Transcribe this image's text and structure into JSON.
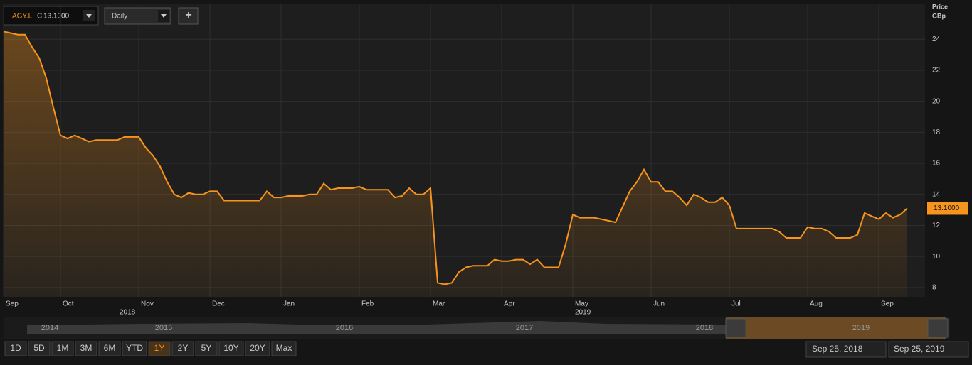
{
  "chart_data": {
    "type": "line",
    "axis_title": "Price",
    "axis_unit": "GBp",
    "categories": [
      "Sep",
      null,
      null,
      null,
      null,
      null,
      null,
      null,
      "Oct",
      null,
      null,
      null,
      null,
      null,
      null,
      null,
      null,
      null,
      null,
      "Nov",
      null,
      null,
      null,
      null,
      null,
      null,
      null,
      null,
      null,
      "Dec",
      null,
      null,
      null,
      null,
      null,
      null,
      null,
      null,
      null,
      "Jan",
      null,
      null,
      null,
      null,
      null,
      null,
      null,
      null,
      null,
      null,
      "Feb",
      null,
      null,
      null,
      null,
      null,
      null,
      null,
      null,
      null,
      "Mar",
      null,
      null,
      null,
      null,
      null,
      null,
      null,
      null,
      null,
      "Apr",
      null,
      null,
      null,
      null,
      null,
      null,
      null,
      null,
      null,
      "May",
      null,
      null,
      null,
      null,
      null,
      null,
      null,
      null,
      null,
      null,
      "Jun",
      null,
      null,
      null,
      null,
      null,
      null,
      null,
      null,
      null,
      null,
      "Jul",
      null,
      null,
      null,
      null,
      null,
      null,
      null,
      null,
      null,
      null,
      "Aug",
      null,
      null,
      null,
      null,
      null,
      null,
      null,
      null,
      null,
      "Sep",
      null,
      null,
      null,
      null
    ],
    "years": [
      "2018",
      "2019"
    ],
    "series": [
      {
        "name": "AGY.L",
        "color": "#f7941d",
        "values": [
          24.5,
          24.4,
          24.3,
          24.3,
          23.5,
          22.8,
          21.5,
          19.6,
          17.8,
          17.6,
          17.8,
          17.6,
          17.4,
          17.5,
          17.5,
          17.5,
          17.5,
          17.7,
          17.7,
          17.7,
          17.0,
          16.5,
          15.8,
          14.8,
          14.0,
          13.8,
          14.1,
          14.0,
          14.0,
          14.2,
          14.2,
          13.6,
          13.6,
          13.6,
          13.6,
          13.6,
          13.6,
          14.2,
          13.8,
          13.8,
          13.9,
          13.9,
          13.9,
          14.0,
          14.0,
          14.7,
          14.3,
          14.4,
          14.4,
          14.4,
          14.5,
          14.3,
          14.3,
          14.3,
          14.3,
          13.8,
          13.9,
          14.4,
          14.0,
          14.0,
          14.4,
          8.3,
          8.2,
          8.3,
          9.0,
          9.3,
          9.4,
          9.4,
          9.4,
          9.8,
          9.7,
          9.7,
          9.8,
          9.8,
          9.5,
          9.8,
          9.3,
          9.3,
          9.3,
          10.8,
          12.7,
          12.5,
          12.5,
          12.5,
          12.4,
          12.3,
          12.2,
          13.2,
          14.2,
          14.8,
          15.6,
          14.8,
          14.8,
          14.2,
          14.2,
          13.8,
          13.3,
          14.0,
          13.8,
          13.5,
          13.5,
          13.8,
          13.3,
          11.8,
          11.8,
          11.8,
          11.8,
          11.8,
          11.8,
          11.6,
          11.2,
          11.2,
          11.2,
          11.9,
          11.8,
          11.8,
          11.6,
          11.2,
          11.2,
          11.2,
          11.4,
          12.8,
          12.6,
          12.4,
          12.8,
          12.5,
          12.7,
          13.1
        ]
      }
    ],
    "price_tag": "13.1000",
    "ylim": [
      7.4,
      26.3
    ],
    "yticks": [
      8,
      10,
      12,
      14,
      16,
      18,
      20,
      22,
      24
    ],
    "grid": true
  },
  "ui": {
    "ticker": "AGY.L",
    "close_prefix": "C",
    "close": "13.1000",
    "interval": "Daily",
    "add": "+",
    "navigator_years": [
      "2014",
      "2015",
      "2016",
      "2017",
      "2018",
      "2019"
    ],
    "ranges": [
      "1D",
      "5D",
      "1M",
      "3M",
      "6M",
      "YTD",
      "1Y",
      "2Y",
      "5Y",
      "10Y",
      "20Y",
      "Max"
    ],
    "active_range": "1Y",
    "start_date": "Sep 25, 2018",
    "end_date": "Sep 25, 2019"
  }
}
